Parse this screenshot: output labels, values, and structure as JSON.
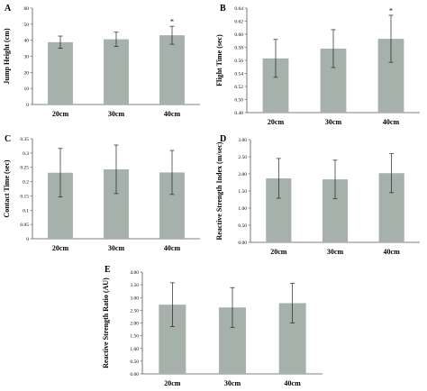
{
  "chart_data": [
    {
      "type": "bar",
      "panel": "A",
      "title": "",
      "xlabel": "",
      "ylabel": "Jump Height (cm)",
      "categories": [
        "20cm",
        "30cm",
        "40cm"
      ],
      "values": [
        38.8,
        40.6,
        43.1
      ],
      "errors": [
        3.8,
        4.4,
        5.6
      ],
      "significance": [
        "",
        "",
        "*"
      ],
      "ylim": [
        0,
        60
      ],
      "yticks": [
        0,
        10,
        20,
        30,
        40,
        50,
        60
      ],
      "ytick_labels": [
        "0",
        "10",
        "20",
        "30",
        "40",
        "50",
        "60"
      ],
      "bar_color": "#a6b1ac"
    },
    {
      "type": "bar",
      "panel": "B",
      "title": "",
      "xlabel": "",
      "ylabel": "Flight Time (sec)",
      "categories": [
        "20cm",
        "30cm",
        "40cm"
      ],
      "values": [
        0.563,
        0.578,
        0.593
      ],
      "errors": [
        0.029,
        0.029,
        0.036
      ],
      "significance": [
        "",
        "",
        "*"
      ],
      "ylim": [
        0.48,
        0.64
      ],
      "yticks": [
        0.48,
        0.5,
        0.52,
        0.54,
        0.56,
        0.58,
        0.6,
        0.62,
        0.64
      ],
      "ytick_labels": [
        "0.48",
        "0.50",
        "0.52",
        "0.54",
        "0.56",
        "0.58",
        "0.60",
        "0.62",
        "0.64"
      ],
      "bar_color": "#a6b1ac"
    },
    {
      "type": "bar",
      "panel": "C",
      "title": "",
      "xlabel": "",
      "ylabel": "Contact Time (sec)",
      "categories": [
        "20cm",
        "30cm",
        "40cm"
      ],
      "values": [
        0.231,
        0.243,
        0.232
      ],
      "errors": [
        0.085,
        0.085,
        0.077
      ],
      "significance": [
        "",
        "",
        ""
      ],
      "ylim": [
        0,
        0.35
      ],
      "yticks": [
        0,
        0.05,
        0.1,
        0.15,
        0.2,
        0.25,
        0.3,
        0.35
      ],
      "ytick_labels": [
        "0",
        "0.05",
        "0.1",
        "0.15",
        "0.2",
        "0.25",
        "0.3",
        "0.35"
      ],
      "bar_color": "#a6b1ac"
    },
    {
      "type": "bar",
      "panel": "D",
      "title": "",
      "xlabel": "",
      "ylabel": "Reactive Strength Index (m/sec)",
      "categories": [
        "20cm",
        "30cm",
        "40cm"
      ],
      "values": [
        1.87,
        1.84,
        2.02
      ],
      "errors": [
        0.58,
        0.56,
        0.57
      ],
      "significance": [
        "",
        "",
        ""
      ],
      "ylim": [
        0,
        3.0
      ],
      "yticks": [
        0,
        0.5,
        1.0,
        1.5,
        2.0,
        2.5,
        3.0
      ],
      "ytick_labels": [
        "0.00",
        "0.50",
        "1.00",
        "1.50",
        "2.00",
        "2.50",
        "3.00"
      ],
      "bar_color": "#a6b1ac"
    },
    {
      "type": "bar",
      "panel": "E",
      "title": "",
      "xlabel": "",
      "ylabel": "Reactive Strength Ratio (AU)",
      "categories": [
        "20cm",
        "30cm",
        "40cm"
      ],
      "values": [
        2.72,
        2.61,
        2.78
      ],
      "errors": [
        0.86,
        0.78,
        0.78
      ],
      "significance": [
        "",
        "",
        ""
      ],
      "ylim": [
        0,
        4.0
      ],
      "yticks": [
        0,
        0.5,
        1.0,
        1.5,
        2.0,
        2.5,
        3.0,
        3.5,
        4.0
      ],
      "ytick_labels": [
        "0.00",
        "0.50",
        "1.00",
        "1.50",
        "2.00",
        "2.50",
        "3.00",
        "3.50",
        "4.00"
      ],
      "bar_color": "#a6b1ac"
    }
  ]
}
